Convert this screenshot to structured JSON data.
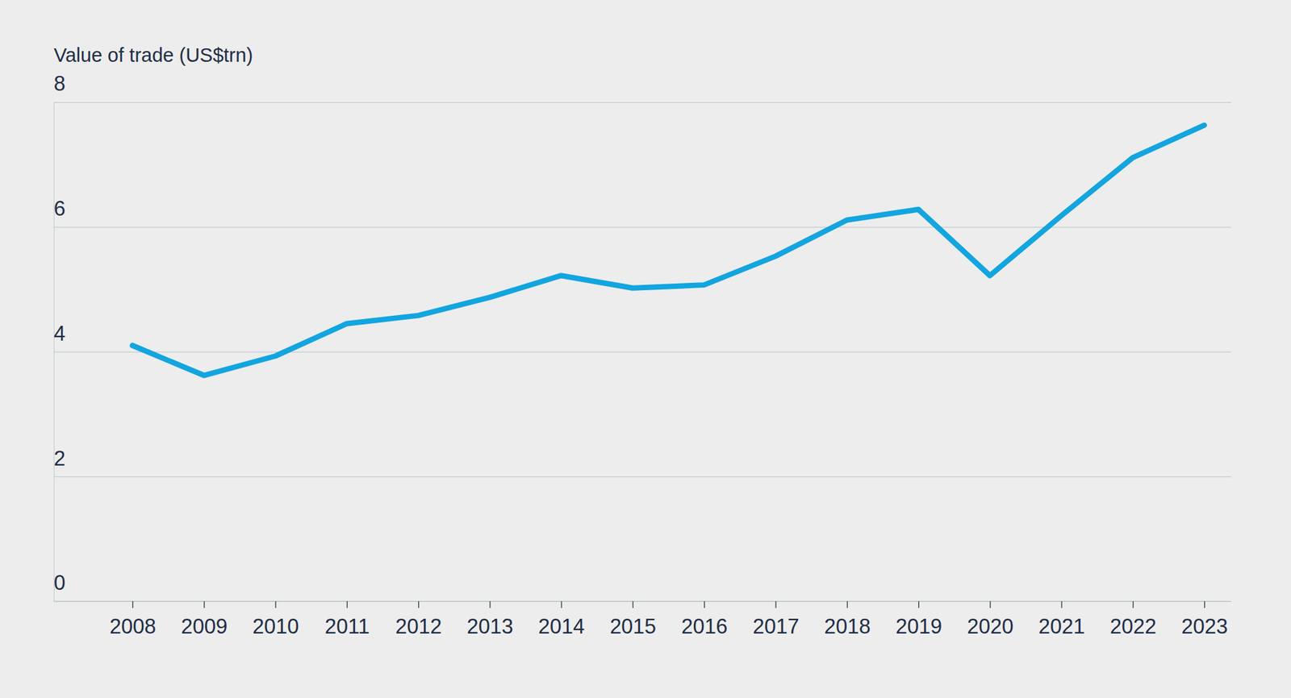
{
  "chart_data": {
    "type": "line",
    "y_label": "Value of trade (US$trn)",
    "categories": [
      "2008",
      "2009",
      "2010",
      "2011",
      "2012",
      "2013",
      "2014",
      "2015",
      "2016",
      "2017",
      "2018",
      "2019",
      "2020",
      "2021",
      "2022",
      "2023"
    ],
    "values": [
      4.1,
      3.62,
      3.93,
      4.45,
      4.58,
      4.87,
      5.22,
      5.02,
      5.07,
      5.53,
      6.11,
      6.28,
      5.22,
      6.18,
      7.11,
      7.63
    ],
    "color": "#12a5df",
    "ylim": [
      0,
      8
    ],
    "yticks": [
      0,
      2,
      4,
      6,
      8
    ],
    "grid": true
  }
}
